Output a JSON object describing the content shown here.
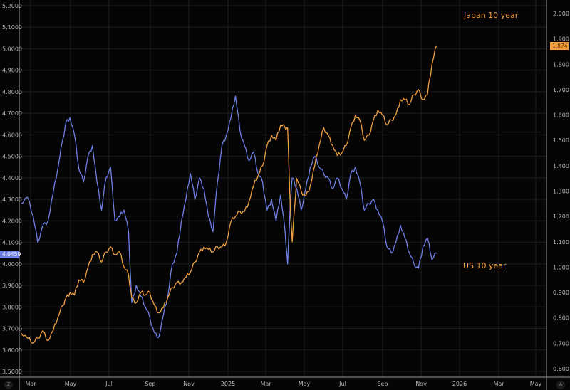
{
  "chart_data": {
    "type": "line",
    "title": "",
    "xlabel": "",
    "ylabel": "",
    "grid": true,
    "dual_axis": true,
    "x_tick_labels": [
      "Mar",
      "May",
      "Jul",
      "Sep",
      "Nov",
      "2025",
      "Mar",
      "May",
      "Jul",
      "Sep",
      "Nov",
      "2026",
      "Mar",
      "May"
    ],
    "x_range": [
      "2024-02",
      "2026-05"
    ],
    "left_axis": {
      "series": "US 10 year",
      "ylim": [
        3.5,
        5.2
      ],
      "ticks": [
        "5.2000",
        "5.1000",
        "5.0000",
        "4.9000",
        "4.8000",
        "4.7000",
        "4.6000",
        "4.5000",
        "4.4000",
        "4.3000",
        "4.2000",
        "4.1000",
        "4.0000",
        "3.9000",
        "3.8000",
        "3.7000",
        "3.6000",
        "3.5000"
      ]
    },
    "right_axis": {
      "series": "Japan 10 year",
      "ylim": [
        0.6,
        2.0
      ],
      "ticks": [
        "2.000",
        "1.900",
        "1.800",
        "1.700",
        "1.600",
        "1.500",
        "1.400",
        "1.300",
        "1.200",
        "1.100",
        "1.000",
        "0.900",
        "0.800",
        "0.700",
        "0.600"
      ]
    },
    "series": [
      {
        "name": "US 10 year",
        "axis": "left",
        "color": "#6f7fe8",
        "last_value": "4.0459",
        "x": [
          "2024-02-15",
          "2024-02-25",
          "2024-03-05",
          "2024-03-12",
          "2024-03-20",
          "2024-03-28",
          "2024-04-05",
          "2024-04-12",
          "2024-04-20",
          "2024-04-25",
          "2024-05-01",
          "2024-05-08",
          "2024-05-15",
          "2024-05-22",
          "2024-05-29",
          "2024-06-05",
          "2024-06-12",
          "2024-06-19",
          "2024-06-26",
          "2024-07-03",
          "2024-07-10",
          "2024-07-17",
          "2024-07-24",
          "2024-07-31",
          "2024-08-05",
          "2024-08-12",
          "2024-08-19",
          "2024-08-26",
          "2024-09-02",
          "2024-09-09",
          "2024-09-16",
          "2024-09-23",
          "2024-09-30",
          "2024-10-07",
          "2024-10-14",
          "2024-10-21",
          "2024-10-28",
          "2024-11-04",
          "2024-11-11",
          "2024-11-18",
          "2024-11-25",
          "2024-12-02",
          "2024-12-09",
          "2024-12-16",
          "2024-12-23",
          "2024-12-30",
          "2025-01-06",
          "2025-01-13",
          "2025-01-20",
          "2025-01-27",
          "2025-02-03",
          "2025-02-10",
          "2025-02-17",
          "2025-02-24",
          "2025-03-03",
          "2025-03-10",
          "2025-03-17",
          "2025-03-24",
          "2025-03-31",
          "2025-04-04",
          "2025-04-08",
          "2025-04-11",
          "2025-04-18",
          "2025-04-25",
          "2025-05-02",
          "2025-05-09",
          "2025-05-16",
          "2025-05-23",
          "2025-05-30",
          "2025-06-06",
          "2025-06-13",
          "2025-06-20",
          "2025-06-27",
          "2025-07-04",
          "2025-07-11",
          "2025-07-18",
          "2025-07-25",
          "2025-08-01",
          "2025-08-08",
          "2025-08-15",
          "2025-08-22",
          "2025-08-29",
          "2025-09-05",
          "2025-09-12",
          "2025-09-19",
          "2025-09-26",
          "2025-10-03",
          "2025-10-10",
          "2025-10-17",
          "2025-10-24",
          "2025-10-31",
          "2025-11-07",
          "2025-11-14",
          "2025-11-21"
        ],
        "values": [
          4.28,
          4.31,
          4.22,
          4.1,
          4.18,
          4.2,
          4.33,
          4.44,
          4.58,
          4.66,
          4.68,
          4.6,
          4.44,
          4.38,
          4.5,
          4.55,
          4.38,
          4.25,
          4.4,
          4.45,
          4.2,
          4.22,
          4.25,
          4.15,
          3.82,
          3.9,
          3.85,
          3.8,
          3.75,
          3.68,
          3.66,
          3.76,
          3.85,
          4.0,
          4.05,
          4.2,
          4.3,
          4.42,
          4.3,
          4.4,
          4.35,
          4.22,
          4.15,
          4.38,
          4.55,
          4.6,
          4.68,
          4.78,
          4.62,
          4.55,
          4.48,
          4.52,
          4.42,
          4.38,
          4.25,
          4.3,
          4.2,
          4.32,
          4.15,
          4.0,
          4.28,
          4.4,
          4.35,
          4.25,
          4.35,
          4.45,
          4.5,
          4.45,
          4.42,
          4.4,
          4.35,
          4.4,
          4.35,
          4.3,
          4.42,
          4.45,
          4.38,
          4.25,
          4.28,
          4.3,
          4.25,
          4.2,
          4.08,
          4.05,
          4.1,
          4.18,
          4.12,
          4.05,
          4.0,
          3.98,
          4.08,
          4.12,
          4.02,
          4.05
        ]
      },
      {
        "name": "Japan 10 year",
        "axis": "right",
        "color": "#f0a040",
        "last_value": "1.874",
        "x": [
          "2024-02-15",
          "2024-02-25",
          "2024-03-05",
          "2024-03-12",
          "2024-03-20",
          "2024-03-28",
          "2024-04-05",
          "2024-04-12",
          "2024-04-20",
          "2024-04-25",
          "2024-05-01",
          "2024-05-08",
          "2024-05-15",
          "2024-05-22",
          "2024-05-29",
          "2024-06-05",
          "2024-06-12",
          "2024-06-19",
          "2024-06-26",
          "2024-07-03",
          "2024-07-10",
          "2024-07-17",
          "2024-07-24",
          "2024-07-31",
          "2024-08-05",
          "2024-08-12",
          "2024-08-19",
          "2024-08-26",
          "2024-09-02",
          "2024-09-09",
          "2024-09-16",
          "2024-09-23",
          "2024-09-30",
          "2024-10-07",
          "2024-10-14",
          "2024-10-21",
          "2024-10-28",
          "2024-11-04",
          "2024-11-11",
          "2024-11-18",
          "2024-11-25",
          "2024-12-02",
          "2024-12-09",
          "2024-12-16",
          "2024-12-23",
          "2024-12-30",
          "2025-01-06",
          "2025-01-13",
          "2025-01-20",
          "2025-01-27",
          "2025-02-03",
          "2025-02-10",
          "2025-02-17",
          "2025-02-24",
          "2025-03-03",
          "2025-03-10",
          "2025-03-17",
          "2025-03-24",
          "2025-03-31",
          "2025-04-04",
          "2025-04-08",
          "2025-04-11",
          "2025-04-18",
          "2025-04-25",
          "2025-05-02",
          "2025-05-09",
          "2025-05-16",
          "2025-05-23",
          "2025-05-30",
          "2025-06-06",
          "2025-06-13",
          "2025-06-20",
          "2025-06-27",
          "2025-07-04",
          "2025-07-11",
          "2025-07-18",
          "2025-07-25",
          "2025-08-01",
          "2025-08-08",
          "2025-08-15",
          "2025-08-22",
          "2025-08-29",
          "2025-09-05",
          "2025-09-12",
          "2025-09-19",
          "2025-09-26",
          "2025-10-03",
          "2025-10-10",
          "2025-10-17",
          "2025-10-24",
          "2025-10-31",
          "2025-11-07",
          "2025-11-14",
          "2025-11-21"
        ],
        "values": [
          0.74,
          0.72,
          0.7,
          0.72,
          0.75,
          0.71,
          0.75,
          0.8,
          0.85,
          0.88,
          0.9,
          0.89,
          0.95,
          0.94,
          1.0,
          1.05,
          1.06,
          1.02,
          1.06,
          1.08,
          1.05,
          1.06,
          1.0,
          0.97,
          0.88,
          0.86,
          0.9,
          0.89,
          0.9,
          0.85,
          0.82,
          0.84,
          0.88,
          0.92,
          0.94,
          0.94,
          0.96,
          0.98,
          1.02,
          1.06,
          1.08,
          1.07,
          1.06,
          1.08,
          1.08,
          1.1,
          1.18,
          1.2,
          1.22,
          1.22,
          1.26,
          1.32,
          1.36,
          1.4,
          1.48,
          1.52,
          1.5,
          1.56,
          1.55,
          1.55,
          1.24,
          1.1,
          1.35,
          1.3,
          1.28,
          1.32,
          1.4,
          1.48,
          1.55,
          1.52,
          1.48,
          1.44,
          1.45,
          1.48,
          1.55,
          1.6,
          1.58,
          1.5,
          1.52,
          1.58,
          1.62,
          1.6,
          1.56,
          1.58,
          1.6,
          1.66,
          1.66,
          1.64,
          1.68,
          1.7,
          1.66,
          1.68,
          1.8,
          1.874
        ]
      }
    ],
    "annotations": [
      {
        "text": "Japan 10 year",
        "color": "#f0a040"
      },
      {
        "text": "US 10 year",
        "color": "#f0a040"
      }
    ]
  },
  "labels": {
    "japan_series_label": "Japan 10 year",
    "us_series_label": "US 10 year",
    "us_last_value_badge": "4.0459",
    "japan_last_value_badge": "1.874",
    "corner_left": "Z",
    "corner_right": "A"
  },
  "colors": {
    "background": "#050505",
    "grid": "#1e1e1e",
    "axis_line": "#9a9a9a",
    "tick_text": "#b8b8b8",
    "us_line": "#6f7fe8",
    "japan_line": "#f0a040",
    "us_badge_bg": "#6f7fe8",
    "japan_badge_bg": "#f5a03a"
  }
}
